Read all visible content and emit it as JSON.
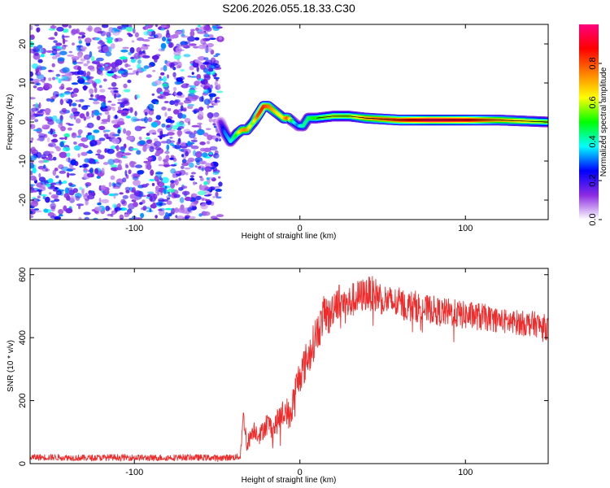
{
  "figure": {
    "title": "S206.2026.055.18.33.C30"
  },
  "chart_data": [
    {
      "type": "heatmap",
      "title": "",
      "xlabel": "Height of straight line (km)",
      "ylabel": "Frequency (Hz)",
      "xlim": [
        -163,
        150
      ],
      "ylim": [
        -25,
        25
      ],
      "xticks": [
        -100,
        0,
        100
      ],
      "xtick_labels": [
        "-100",
        "0",
        "100"
      ],
      "yticks": [
        -20,
        -10,
        0,
        10,
        20
      ],
      "ytick_labels": [
        "-20",
        "-10",
        "0",
        "10",
        "20"
      ],
      "noise_region_x": [
        -163,
        -48
      ],
      "ridge": {
        "x": [
          -48,
          -45,
          -42,
          -38,
          -35,
          -32,
          -28,
          -25,
          -22,
          -19,
          -16,
          -13,
          -10,
          -7,
          -4,
          -1,
          2,
          5,
          10,
          20,
          30,
          40,
          60,
          80,
          100,
          120,
          150
        ],
        "y": [
          0,
          -3,
          -5,
          -3,
          -2,
          -2,
          0,
          2,
          4,
          4,
          3,
          2,
          1,
          1,
          0,
          -1,
          -1,
          1,
          1,
          1.5,
          1.5,
          1,
          0.5,
          0.5,
          0.5,
          0.5,
          0
        ],
        "amplitude": [
          0.12,
          0.3,
          0.35,
          0.5,
          0.7,
          0.75,
          0.55,
          0.8,
          0.85,
          0.78,
          0.72,
          0.65,
          0.62,
          0.8,
          0.45,
          0.3,
          0.42,
          0.45,
          0.5,
          0.58,
          0.55,
          0.7,
          0.82,
          0.95,
          0.9,
          0.72,
          0.55
        ]
      },
      "colorbar": {
        "label": "Normalized spectral amplitude",
        "range": [
          0,
          1
        ],
        "ticks": [
          0.0,
          0.2,
          0.4,
          0.6,
          0.8
        ],
        "tick_labels": [
          "0.0",
          "0.2",
          "0.4",
          "0.6",
          "0.8"
        ],
        "colors": [
          "#ffffff",
          "#8c2be2",
          "#0000ff",
          "#00ffff",
          "#00ff00",
          "#ffff00",
          "#ff8000",
          "#ff0000",
          "#ff007f"
        ]
      }
    },
    {
      "type": "line",
      "title": "",
      "xlabel": "Height of straight line (km)",
      "ylabel": "SNR (10 * v/v)",
      "xlim": [
        -163,
        150
      ],
      "ylim": [
        0,
        620
      ],
      "xticks": [
        -100,
        0,
        100
      ],
      "xtick_labels": [
        "-100",
        "0",
        "100"
      ],
      "yticks": [
        0,
        200,
        400,
        600
      ],
      "ytick_labels": [
        "0",
        "200",
        "400",
        "600"
      ],
      "color": "#ee2c2c",
      "series": [
        {
          "name": "SNR",
          "x": [
            -163,
            -150,
            -130,
            -110,
            -90,
            -70,
            -50,
            -40,
            -36,
            -35,
            -34,
            -32,
            -28,
            -24,
            -20,
            -16,
            -12,
            -8,
            -6,
            -4,
            -2,
            0,
            2,
            4,
            6,
            8,
            10,
            12,
            14,
            16,
            18,
            20,
            22,
            25,
            28,
            32,
            36,
            40,
            44,
            48,
            52,
            56,
            60,
            65,
            70,
            75,
            80,
            85,
            90,
            95,
            100,
            105,
            110,
            115,
            120,
            125,
            130,
            135,
            140,
            145,
            150
          ],
          "y": [
            20,
            20,
            18,
            20,
            18,
            20,
            18,
            20,
            22,
            100,
            150,
            60,
            110,
            90,
            130,
            110,
            150,
            170,
            140,
            200,
            250,
            280,
            300,
            330,
            350,
            380,
            420,
            430,
            470,
            480,
            460,
            500,
            520,
            510,
            500,
            520,
            530,
            540,
            540,
            530,
            520,
            510,
            510,
            500,
            500,
            490,
            490,
            480,
            480,
            475,
            470,
            470,
            465,
            460,
            455,
            450,
            450,
            445,
            445,
            440,
            430
          ],
          "noise_amplitude": [
            10,
            10,
            10,
            10,
            10,
            10,
            10,
            10,
            10,
            25,
            30,
            25,
            30,
            30,
            35,
            35,
            40,
            45,
            45,
            50,
            55,
            55,
            60,
            60,
            60,
            60,
            60,
            60,
            60,
            60,
            60,
            60,
            60,
            60,
            60,
            55,
            55,
            55,
            55,
            55,
            50,
            50,
            50,
            50,
            50,
            45,
            45,
            45,
            45,
            45,
            45,
            45,
            45,
            40,
            40,
            40,
            40,
            40,
            40,
            40,
            40
          ]
        }
      ]
    }
  ]
}
